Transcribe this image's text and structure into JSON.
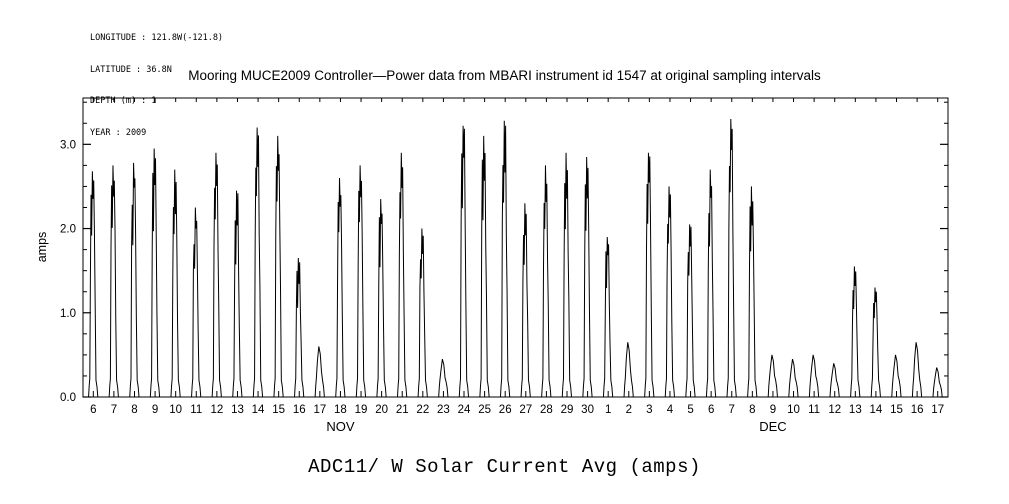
{
  "metadata": {
    "longitude": "LONGITUDE : 121.8W(-121.8)",
    "latitude": "LATITUDE : 36.8N",
    "depth": "DEPTH (m) : 1",
    "year": "YEAR : 2009"
  },
  "chart_data": {
    "type": "line",
    "title": "Mooring MUCE2009 Controller—Power data from MBARI instrument id 1547 at original sampling intervals",
    "caption": "ADC11/ W Solar Current Avg (amps)",
    "ylabel": "amps",
    "xlabel": "",
    "ylim": [
      0,
      3.55
    ],
    "yticks": [
      "0.0",
      "1.0",
      "2.0",
      "3.0"
    ],
    "grid": false,
    "legend": "none",
    "series_name": "solar-current-avg-amps",
    "description": "Daily solar current peaks (amps), zero at night, spiking each daylight period",
    "month_labels": [
      "NOV",
      "DEC"
    ],
    "days": [
      {
        "month": "NOV",
        "day": "6",
        "peak": 2.68
      },
      {
        "month": "NOV",
        "day": "7",
        "peak": 2.75
      },
      {
        "month": "NOV",
        "day": "8",
        "peak": 2.78
      },
      {
        "month": "NOV",
        "day": "9",
        "peak": 2.95
      },
      {
        "month": "NOV",
        "day": "10",
        "peak": 2.7
      },
      {
        "month": "NOV",
        "day": "11",
        "peak": 2.25
      },
      {
        "month": "NOV",
        "day": "12",
        "peak": 2.9
      },
      {
        "month": "NOV",
        "day": "13",
        "peak": 2.45
      },
      {
        "month": "NOV",
        "day": "14",
        "peak": 3.2
      },
      {
        "month": "NOV",
        "day": "15",
        "peak": 3.1
      },
      {
        "month": "NOV",
        "day": "16",
        "peak": 1.65
      },
      {
        "month": "NOV",
        "day": "17",
        "peak": 0.6
      },
      {
        "month": "NOV",
        "day": "18",
        "peak": 2.6
      },
      {
        "month": "NOV",
        "day": "19",
        "peak": 2.75
      },
      {
        "month": "NOV",
        "day": "20",
        "peak": 2.35
      },
      {
        "month": "NOV",
        "day": "21",
        "peak": 2.9
      },
      {
        "month": "NOV",
        "day": "22",
        "peak": 2.0
      },
      {
        "month": "NOV",
        "day": "23",
        "peak": 0.45
      },
      {
        "month": "NOV",
        "day": "24",
        "peak": 3.22
      },
      {
        "month": "NOV",
        "day": "25",
        "peak": 3.1
      },
      {
        "month": "NOV",
        "day": "26",
        "peak": 3.28
      },
      {
        "month": "NOV",
        "day": "27",
        "peak": 2.3
      },
      {
        "month": "NOV",
        "day": "28",
        "peak": 2.75
      },
      {
        "month": "NOV",
        "day": "29",
        "peak": 2.9
      },
      {
        "month": "NOV",
        "day": "30",
        "peak": 2.85
      },
      {
        "month": "DEC",
        "day": "1",
        "peak": 1.9
      },
      {
        "month": "DEC",
        "day": "2",
        "peak": 0.65
      },
      {
        "month": "DEC",
        "day": "3",
        "peak": 2.9
      },
      {
        "month": "DEC",
        "day": "4",
        "peak": 2.5
      },
      {
        "month": "DEC",
        "day": "5",
        "peak": 2.05
      },
      {
        "month": "DEC",
        "day": "6",
        "peak": 2.7
      },
      {
        "month": "DEC",
        "day": "7",
        "peak": 3.3
      },
      {
        "month": "DEC",
        "day": "8",
        "peak": 2.5
      },
      {
        "month": "DEC",
        "day": "9",
        "peak": 0.5
      },
      {
        "month": "DEC",
        "day": "10",
        "peak": 0.45
      },
      {
        "month": "DEC",
        "day": "11",
        "peak": 0.5
      },
      {
        "month": "DEC",
        "day": "12",
        "peak": 0.4
      },
      {
        "month": "DEC",
        "day": "13",
        "peak": 1.55
      },
      {
        "month": "DEC",
        "day": "14",
        "peak": 1.3
      },
      {
        "month": "DEC",
        "day": "15",
        "peak": 0.5
      },
      {
        "month": "DEC",
        "day": "16",
        "peak": 0.65
      },
      {
        "month": "DEC",
        "day": "17",
        "peak": 0.35
      }
    ],
    "line_color": "#000000"
  }
}
